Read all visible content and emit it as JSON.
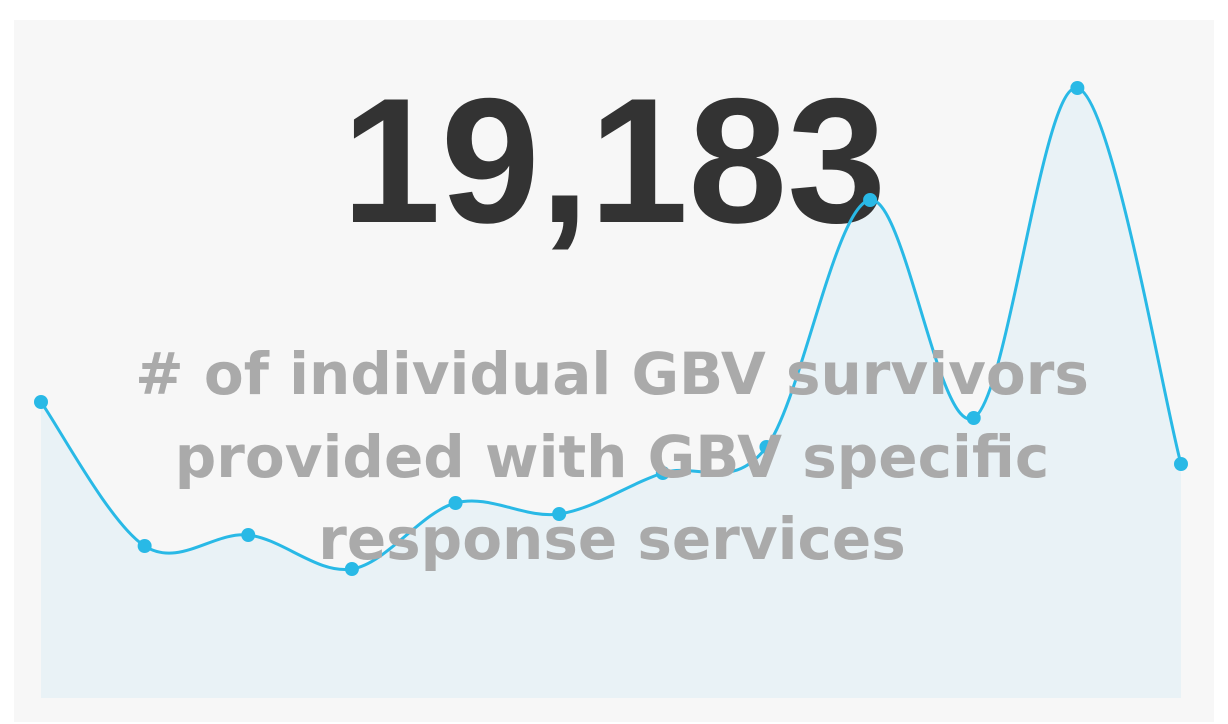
{
  "chart_data": {
    "type": "line",
    "kpi": "19,183",
    "title_lines": [
      "# of individual GBV survivors",
      "provided with GBV specific",
      "response services"
    ],
    "values": [
      296,
      152,
      163,
      129,
      195,
      184,
      225,
      251,
      498,
      280,
      610,
      234
    ],
    "color": "#29b9e6",
    "area_color": "#e9f2f6"
  }
}
